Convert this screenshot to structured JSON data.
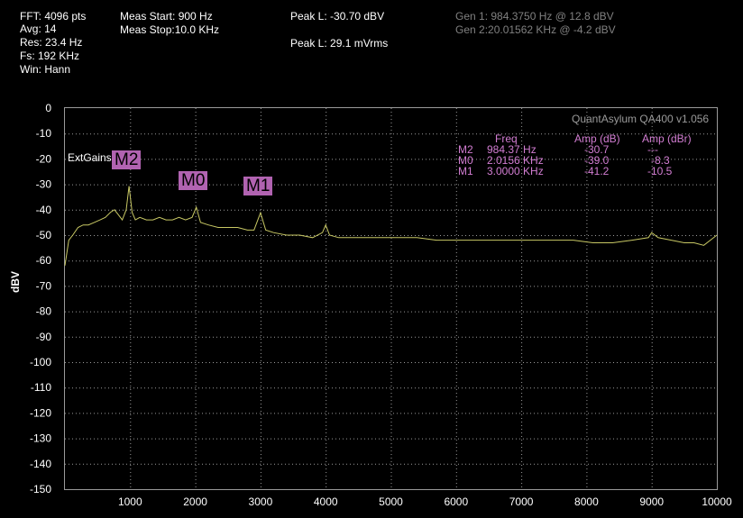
{
  "info": {
    "fft": "FFT: 4096 pts",
    "avg": "Avg: 14",
    "res": "Res: 23.4 Hz",
    "fs": "Fs: 192 KHz",
    "win": "Win: Hann",
    "meas_start": "Meas Start: 900 Hz",
    "meas_stop": "Meas Stop:10.0 KHz",
    "peak_dbv": "Peak L: -30.70 dBV",
    "peak_mv": "Peak L: 29.1 mVrms",
    "gen1": "Gen 1: 984.3750 Hz @ 12.8  dBV",
    "gen2": "Gen 2:20.01562 KHz @ -4.2  dBV"
  },
  "watermark": "QuantAsylum QA400 v1.056",
  "ext_gains": "ExtGains",
  "markers": [
    {
      "label": "M2",
      "freq": "984.37 Hz",
      "amp_db": "-30.7",
      "amp_dbr": "---",
      "x": 984.37,
      "y": -30.7
    },
    {
      "label": "M0",
      "freq": "2.0156 KHz",
      "amp_db": "-39.0",
      "amp_dbr": "-8.3",
      "x": 2015.6,
      "y": -39.0
    },
    {
      "label": "M1",
      "freq": "3.0000 KHz",
      "amp_db": "-41.2",
      "amp_dbr": "-10.5",
      "x": 3000,
      "y": -41.2
    }
  ],
  "table_headers": {
    "freq": "Freq",
    "amp_db": "Amp (dB)",
    "amp_dbr": "Amp (dBr)"
  },
  "colors": {
    "trace": "#c8c864",
    "marker_bg": "#b163b1",
    "table_text": "#d27dd2",
    "grid": "#9a9a9a"
  },
  "chart_data": {
    "type": "line",
    "xlim": [
      0,
      10000
    ],
    "ylim": [
      -150,
      0
    ],
    "xticks": [
      1000,
      2000,
      3000,
      4000,
      5000,
      6000,
      7000,
      8000,
      9000,
      10000
    ],
    "yticks": [
      0,
      -10,
      -20,
      -30,
      -40,
      -50,
      -60,
      -70,
      -80,
      -90,
      -100,
      -110,
      -120,
      -130,
      -140,
      -150
    ],
    "ylabel": "dBV",
    "grid": true,
    "series": [
      {
        "x": [
          0,
          60,
          120,
          200,
          280,
          360,
          450,
          540,
          620,
          700,
          760,
          820,
          880,
          940,
          984,
          1030,
          1080,
          1150,
          1250,
          1350,
          1450,
          1550,
          1650,
          1750,
          1850,
          1950,
          2015,
          2080,
          2200,
          2350,
          2500,
          2650,
          2800,
          2900,
          3000,
          3080,
          3200,
          3400,
          3600,
          3800,
          3950,
          4000,
          4060,
          4200,
          4500,
          4800,
          5100,
          5400,
          5700,
          6000,
          6300,
          6600,
          6900,
          7200,
          7500,
          7800,
          8100,
          8400,
          8700,
          8950,
          9000,
          9100,
          9300,
          9500,
          9650,
          9800,
          9900,
          10000
        ],
        "y": [
          -62,
          -52,
          -50,
          -47,
          -46,
          -46,
          -45,
          -44,
          -43,
          -41,
          -40,
          -42,
          -44,
          -40,
          -30.7,
          -41,
          -44,
          -43,
          -44,
          -44,
          -43,
          -44,
          -44,
          -43,
          -44,
          -43,
          -39,
          -45,
          -46,
          -47,
          -47,
          -47,
          -48,
          -48,
          -41.2,
          -48,
          -49,
          -50,
          -50,
          -51,
          -49,
          -46,
          -50,
          -51,
          -51,
          -51,
          -51,
          -51,
          -52,
          -52,
          -52,
          -52,
          -52,
          -52,
          -52,
          -52,
          -53,
          -53,
          -52,
          -51,
          -49,
          -51,
          -52,
          -53,
          -53,
          -54,
          -52,
          -50
        ]
      }
    ]
  }
}
